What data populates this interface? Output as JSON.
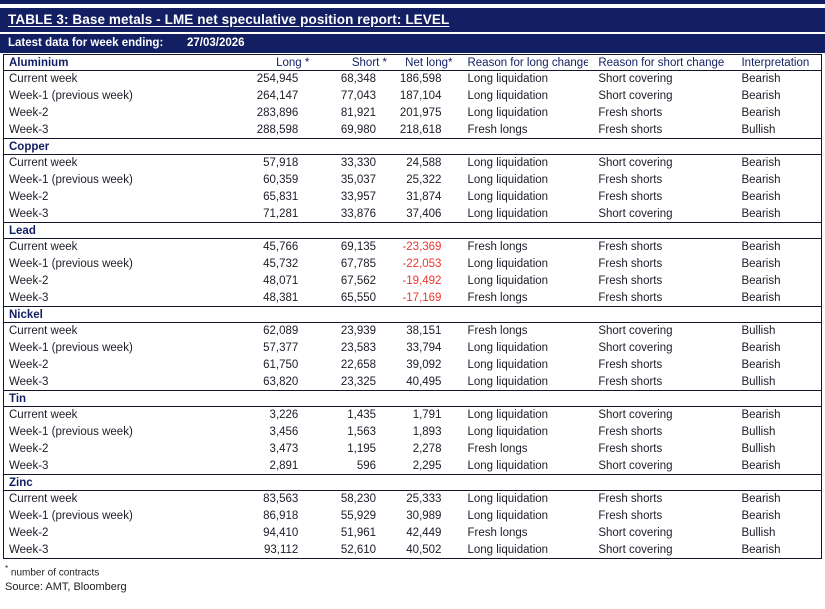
{
  "title": "TABLE 3: Base metals - LME net speculative position report: LEVEL",
  "subheader": {
    "label": "Latest data for week ending:",
    "date": "27/03/2026"
  },
  "columns": {
    "long": "Long *",
    "short": "Short *",
    "net_long": "Net long*",
    "reason_long": "Reason for long change",
    "reason_short": "Reason for short change",
    "interpretation": "Interpretation"
  },
  "sections": [
    {
      "metal": "Aluminium",
      "rows": [
        {
          "label": "Current week",
          "long": "254,945",
          "short": "68,348",
          "net_long": "186,598",
          "reason_long": "Long liquidation",
          "reason_short": "Short covering",
          "interpretation": "Bearish"
        },
        {
          "label": "Week-1 (previous week)",
          "long": "264,147",
          "short": "77,043",
          "net_long": "187,104",
          "reason_long": "Long liquidation",
          "reason_short": "Short covering",
          "interpretation": "Bearish"
        },
        {
          "label": "Week-2",
          "long": "283,896",
          "short": "81,921",
          "net_long": "201,975",
          "reason_long": "Long liquidation",
          "reason_short": "Fresh shorts",
          "interpretation": "Bearish"
        },
        {
          "label": "Week-3",
          "long": "288,598",
          "short": "69,980",
          "net_long": "218,618",
          "reason_long": "Fresh longs",
          "reason_short": "Fresh shorts",
          "interpretation": "Bullish"
        }
      ]
    },
    {
      "metal": "Copper",
      "rows": [
        {
          "label": "Current week",
          "long": "57,918",
          "short": "33,330",
          "net_long": "24,588",
          "reason_long": "Long liquidation",
          "reason_short": "Short covering",
          "interpretation": "Bearish"
        },
        {
          "label": "Week-1 (previous week)",
          "long": "60,359",
          "short": "35,037",
          "net_long": "25,322",
          "reason_long": "Long liquidation",
          "reason_short": "Fresh shorts",
          "interpretation": "Bearish"
        },
        {
          "label": "Week-2",
          "long": "65,831",
          "short": "33,957",
          "net_long": "31,874",
          "reason_long": "Long liquidation",
          "reason_short": "Fresh shorts",
          "interpretation": "Bearish"
        },
        {
          "label": "Week-3",
          "long": "71,281",
          "short": "33,876",
          "net_long": "37,406",
          "reason_long": "Long liquidation",
          "reason_short": "Short covering",
          "interpretation": "Bearish"
        }
      ]
    },
    {
      "metal": "Lead",
      "rows": [
        {
          "label": "Current week",
          "long": "45,766",
          "short": "69,135",
          "net_long": "-23,369",
          "reason_long": "Fresh longs",
          "reason_short": "Fresh shorts",
          "interpretation": "Bearish"
        },
        {
          "label": "Week-1 (previous week)",
          "long": "45,732",
          "short": "67,785",
          "net_long": "-22,053",
          "reason_long": "Long liquidation",
          "reason_short": "Fresh shorts",
          "interpretation": "Bearish"
        },
        {
          "label": "Week-2",
          "long": "48,071",
          "short": "67,562",
          "net_long": "-19,492",
          "reason_long": "Long liquidation",
          "reason_short": "Fresh shorts",
          "interpretation": "Bearish"
        },
        {
          "label": "Week-3",
          "long": "48,381",
          "short": "65,550",
          "net_long": "-17,169",
          "reason_long": "Fresh longs",
          "reason_short": "Fresh shorts",
          "interpretation": "Bearish"
        }
      ]
    },
    {
      "metal": "Nickel",
      "rows": [
        {
          "label": "Current week",
          "long": "62,089",
          "short": "23,939",
          "net_long": "38,151",
          "reason_long": "Fresh longs",
          "reason_short": "Short covering",
          "interpretation": "Bullish"
        },
        {
          "label": "Week-1 (previous week)",
          "long": "57,377",
          "short": "23,583",
          "net_long": "33,794",
          "reason_long": "Long liquidation",
          "reason_short": "Short covering",
          "interpretation": "Bearish"
        },
        {
          "label": "Week-2",
          "long": "61,750",
          "short": "22,658",
          "net_long": "39,092",
          "reason_long": "Long liquidation",
          "reason_short": "Fresh shorts",
          "interpretation": "Bearish"
        },
        {
          "label": "Week-3",
          "long": "63,820",
          "short": "23,325",
          "net_long": "40,495",
          "reason_long": "Long liquidation",
          "reason_short": "Fresh shorts",
          "interpretation": "Bullish"
        }
      ]
    },
    {
      "metal": "Tin",
      "rows": [
        {
          "label": "Current week",
          "long": "3,226",
          "short": "1,435",
          "net_long": "1,791",
          "reason_long": "Long liquidation",
          "reason_short": "Short covering",
          "interpretation": "Bearish"
        },
        {
          "label": "Week-1 (previous week)",
          "long": "3,456",
          "short": "1,563",
          "net_long": "1,893",
          "reason_long": "Long liquidation",
          "reason_short": "Fresh shorts",
          "interpretation": "Bullish"
        },
        {
          "label": "Week-2",
          "long": "3,473",
          "short": "1,195",
          "net_long": "2,278",
          "reason_long": "Fresh longs",
          "reason_short": "Fresh shorts",
          "interpretation": "Bullish"
        },
        {
          "label": "Week-3",
          "long": "2,891",
          "short": "596",
          "net_long": "2,295",
          "reason_long": "Long liquidation",
          "reason_short": "Short covering",
          "interpretation": "Bearish"
        }
      ]
    },
    {
      "metal": "Zinc",
      "rows": [
        {
          "label": "Current week",
          "long": "83,563",
          "short": "58,230",
          "net_long": "25,333",
          "reason_long": "Long liquidation",
          "reason_short": "Fresh shorts",
          "interpretation": "Bearish"
        },
        {
          "label": "Week-1 (previous week)",
          "long": "86,918",
          "short": "55,929",
          "net_long": "30,989",
          "reason_long": "Long liquidation",
          "reason_short": "Fresh shorts",
          "interpretation": "Bearish"
        },
        {
          "label": "Week-2",
          "long": "94,410",
          "short": "51,961",
          "net_long": "42,449",
          "reason_long": "Fresh longs",
          "reason_short": "Short covering",
          "interpretation": "Bullish"
        },
        {
          "label": "Week-3",
          "long": "93,112",
          "short": "52,610",
          "net_long": "40,502",
          "reason_long": "Long liquidation",
          "reason_short": "Short covering",
          "interpretation": "Bearish"
        }
      ]
    }
  ],
  "footnotes": {
    "marker": "*",
    "contracts": "number of contracts",
    "source": "Source: AMT, Bloomberg"
  },
  "colors": {
    "navy": "#121f62",
    "negative_red": "#ee352e",
    "border": "#15162d"
  }
}
